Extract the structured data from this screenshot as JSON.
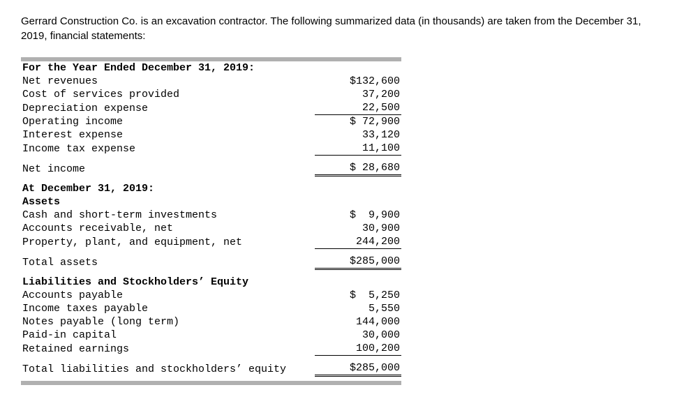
{
  "intro": "Gerrard Construction Co. is an excavation contractor. The following summarized data (in thousands) are taken from the December 31, 2019, financial statements:",
  "income": {
    "header": "For the Year Ended December 31, 2019:",
    "rows": [
      {
        "label": "Net revenues",
        "value": "$132,600"
      },
      {
        "label": "Cost of services provided",
        "value": "37,200"
      },
      {
        "label": "Depreciation expense",
        "value": "22,500"
      },
      {
        "label": "Operating income",
        "value": "$ 72,900"
      },
      {
        "label": "Interest expense",
        "value": "33,120"
      },
      {
        "label": "Income tax expense",
        "value": "11,100"
      },
      {
        "label": "Net income",
        "value": "$ 28,680"
      }
    ]
  },
  "balance": {
    "header": "At December 31, 2019:",
    "assets_header": "Assets",
    "assets": [
      {
        "label": "Cash and short-term investments",
        "value": "$  9,900"
      },
      {
        "label": "Accounts receivable, net",
        "value": "30,900"
      },
      {
        "label": "Property, plant, and equipment, net",
        "value": "244,200"
      },
      {
        "label": "Total assets",
        "value": "$285,000"
      }
    ],
    "liab_header": "Liabilities and Stockholders’ Equity",
    "liab": [
      {
        "label": "Accounts payable",
        "value": "$  5,250"
      },
      {
        "label": "Income taxes payable",
        "value": "5,550"
      },
      {
        "label": "Notes payable (long term)",
        "value": "144,000"
      },
      {
        "label": "Paid-in capital",
        "value": "30,000"
      },
      {
        "label": "Retained earnings",
        "value": "100,200"
      },
      {
        "label": "Total liabilities and stockholders’ equity",
        "value": "$285,000"
      }
    ]
  }
}
